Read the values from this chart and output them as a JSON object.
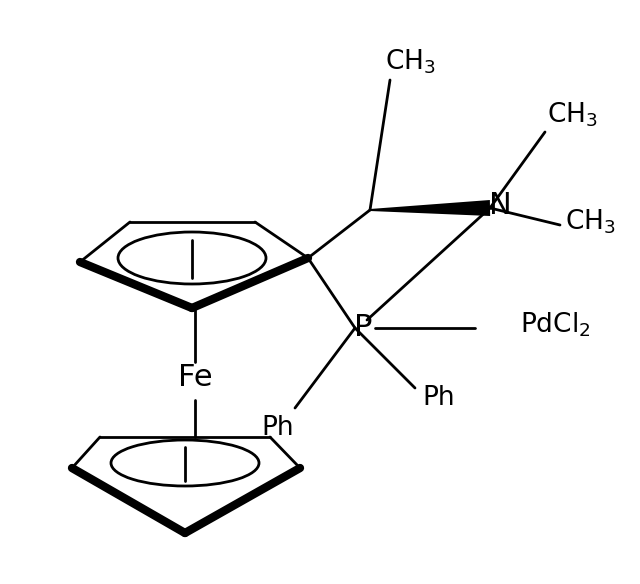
{
  "background_color": "#ffffff",
  "line_color": "#000000",
  "lw": 2.0,
  "lw_bold": 6.0,
  "fig_width": 6.4,
  "fig_height": 5.84,
  "dpi": 100,
  "xlim": [
    0,
    640
  ],
  "ylim": [
    0,
    584
  ]
}
